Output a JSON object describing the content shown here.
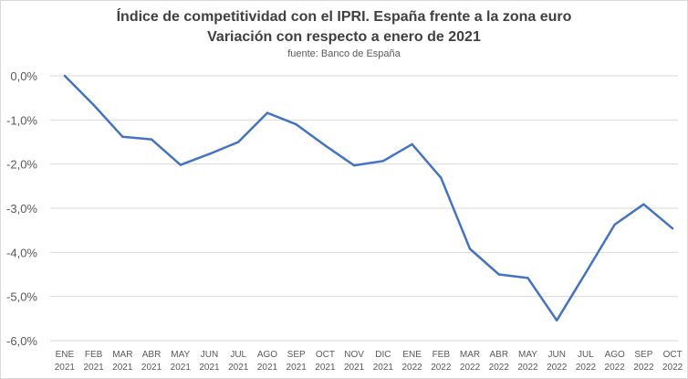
{
  "chart_data": {
    "type": "line",
    "title": "Índice de competitividad con el IPRI. España frente a la zona euro",
    "subtitle": "Variación con respecto a enero de 2021",
    "source": "fuente: Banco de España",
    "categories": [
      [
        "ENE",
        "2021"
      ],
      [
        "FEB",
        "2021"
      ],
      [
        "MAR",
        "2021"
      ],
      [
        "ABR",
        "2021"
      ],
      [
        "MAY",
        "2021"
      ],
      [
        "JUN",
        "2021"
      ],
      [
        "JUL",
        "2021"
      ],
      [
        "AGO",
        "2021"
      ],
      [
        "SEP",
        "2021"
      ],
      [
        "OCT",
        "2021"
      ],
      [
        "NOV",
        "2021"
      ],
      [
        "DIC",
        "2021"
      ],
      [
        "ENE",
        "2022"
      ],
      [
        "FEB",
        "2022"
      ],
      [
        "MAR",
        "2022"
      ],
      [
        "ABR",
        "2022"
      ],
      [
        "MAY",
        "2022"
      ],
      [
        "JUN",
        "2022"
      ],
      [
        "JUL",
        "2022"
      ],
      [
        "AGO",
        "2022"
      ],
      [
        "SEP",
        "2022"
      ],
      [
        "OCT",
        "2022"
      ]
    ],
    "series": [
      {
        "values": [
          0.0,
          -0.66,
          -1.38,
          -1.44,
          -2.02,
          -1.77,
          -1.5,
          -0.84,
          -1.1,
          -1.58,
          -2.03,
          -1.93,
          -1.55,
          -2.31,
          -3.92,
          -4.5,
          -4.58,
          -5.54,
          -4.46,
          -3.37,
          -2.91,
          -3.46
        ]
      }
    ],
    "ylim": [
      -6,
      0
    ],
    "yticks": [
      {
        "value": 0,
        "label": "0,0%"
      },
      {
        "value": -1,
        "label": "-1,0%"
      },
      {
        "value": -2,
        "label": "-2,0%"
      },
      {
        "value": -3,
        "label": "-3,0%"
      },
      {
        "value": -4,
        "label": "-4,0%"
      },
      {
        "value": -5,
        "label": "-5,0%"
      },
      {
        "value": -6,
        "label": "-6,0%"
      }
    ],
    "grid": true,
    "legend": "none",
    "colors": {
      "line": "#4472c4",
      "grid": "#d9d9d9",
      "axis_text": "#595959",
      "title": "#404040"
    }
  }
}
